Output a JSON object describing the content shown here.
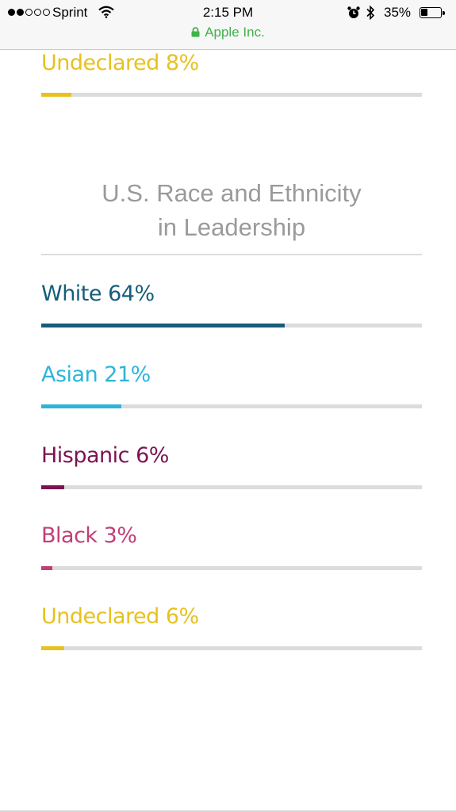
{
  "status_bar": {
    "carrier": "Sprint",
    "time": "2:15 PM",
    "battery": "35%",
    "battery_level": 0.35,
    "url": "Apple Inc."
  },
  "top_item": {
    "label": "Undeclared 8%",
    "value": 8,
    "color": "#e8c11f"
  },
  "section": {
    "title_line1": "U.S. Race and Ethnicity",
    "title_line2": "in Leadership"
  },
  "items": [
    {
      "label": "White 64%",
      "value": 64,
      "color": "#165d7a"
    },
    {
      "label": "Asian 21%",
      "value": 21,
      "color": "#2db5d9"
    },
    {
      "label": "Hispanic 6%",
      "value": 6,
      "color": "#7b1352"
    },
    {
      "label": "Black 3%",
      "value": 3,
      "color": "#c13f76"
    },
    {
      "label": "Undeclared 6%",
      "value": 6,
      "color": "#e8c11f"
    }
  ]
}
